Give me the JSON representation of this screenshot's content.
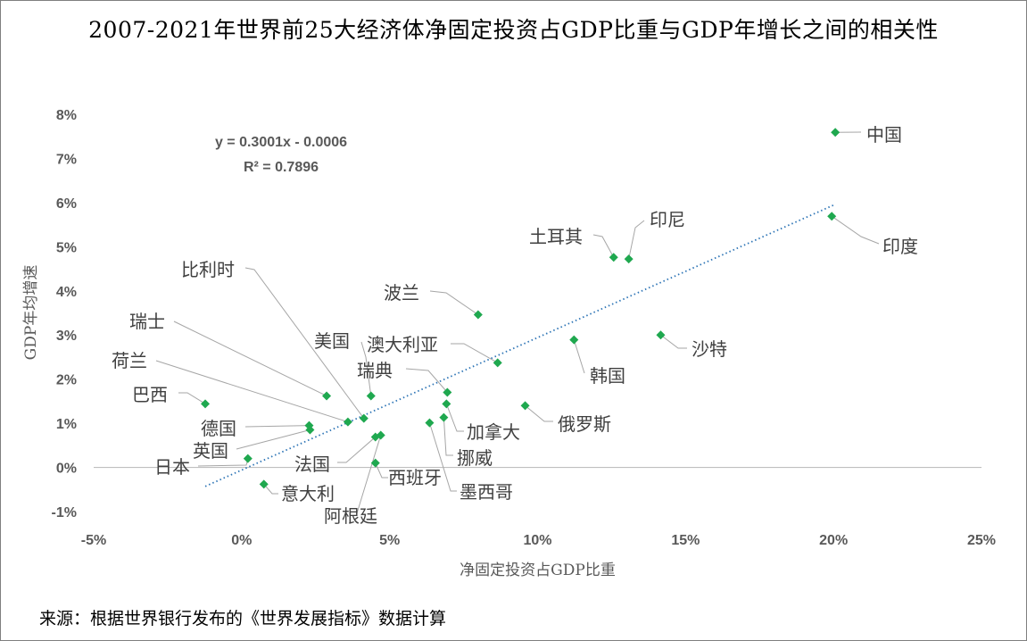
{
  "chart_data": {
    "type": "scatter",
    "title": "2007-2021年世界前25大经济体净固定投资占GDP比重与GDP年增长之间的相关性",
    "xlabel": "净固定投资占GDP比重",
    "ylabel": "GDP年均增速",
    "xlim": [
      -5,
      25
    ],
    "ylim": [
      -1,
      8
    ],
    "x_ticks": [
      "-5%",
      "0%",
      "5%",
      "10%",
      "15%",
      "20%",
      "25%"
    ],
    "y_ticks": [
      "-1%",
      "0%",
      "1%",
      "2%",
      "3%",
      "4%",
      "5%",
      "6%",
      "7%",
      "8%"
    ],
    "grid": false,
    "marker_color": "#1fa84f",
    "trendline": {
      "slope": 0.3001,
      "intercept": -0.0006,
      "equation": "y = 0.3001x - 0.0006",
      "r2": "R² = 0.7896",
      "color": "#2e75b6"
    },
    "points": [
      {
        "name": "中国",
        "x": 20.06,
        "y": 7.59
      },
      {
        "name": "印度",
        "x": 19.94,
        "y": 5.69
      },
      {
        "name": "印尼",
        "x": 13.08,
        "y": 4.72
      },
      {
        "name": "土耳其",
        "x": 12.57,
        "y": 4.76
      },
      {
        "name": "沙特",
        "x": 14.16,
        "y": 3.0
      },
      {
        "name": "韩国",
        "x": 11.23,
        "y": 2.89
      },
      {
        "name": "波兰",
        "x": 7.99,
        "y": 3.46
      },
      {
        "name": "澳大利亚",
        "x": 8.65,
        "y": 2.37
      },
      {
        "name": "瑞典",
        "x": 6.95,
        "y": 1.7
      },
      {
        "name": "美国",
        "x": 4.37,
        "y": 1.62
      },
      {
        "name": "比利时",
        "x": 4.13,
        "y": 1.11
      },
      {
        "name": "瑞士",
        "x": 2.87,
        "y": 1.62
      },
      {
        "name": "荷兰",
        "x": 3.59,
        "y": 1.03
      },
      {
        "name": "巴西",
        "x": -1.23,
        "y": 1.44
      },
      {
        "name": "德国",
        "x": 2.28,
        "y": 0.95
      },
      {
        "name": "英国",
        "x": 2.31,
        "y": 0.85
      },
      {
        "name": "日本",
        "x": 0.21,
        "y": 0.2
      },
      {
        "name": "意大利",
        "x": 0.75,
        "y": -0.38
      },
      {
        "name": "法国",
        "x": 4.52,
        "y": 0.69
      },
      {
        "name": "阿根廷",
        "x": 4.7,
        "y": 0.73
      },
      {
        "name": "西班牙",
        "x": 4.52,
        "y": 0.1
      },
      {
        "name": "墨西哥",
        "x": 6.35,
        "y": 1.01
      },
      {
        "name": "挪威",
        "x": 6.83,
        "y": 1.13
      },
      {
        "name": "加拿大",
        "x": 6.92,
        "y": 1.44
      },
      {
        "name": "俄罗斯",
        "x": 9.58,
        "y": 1.4
      }
    ]
  },
  "source": "来源：根据世界银行发布的《世界发展指标》数据计算"
}
